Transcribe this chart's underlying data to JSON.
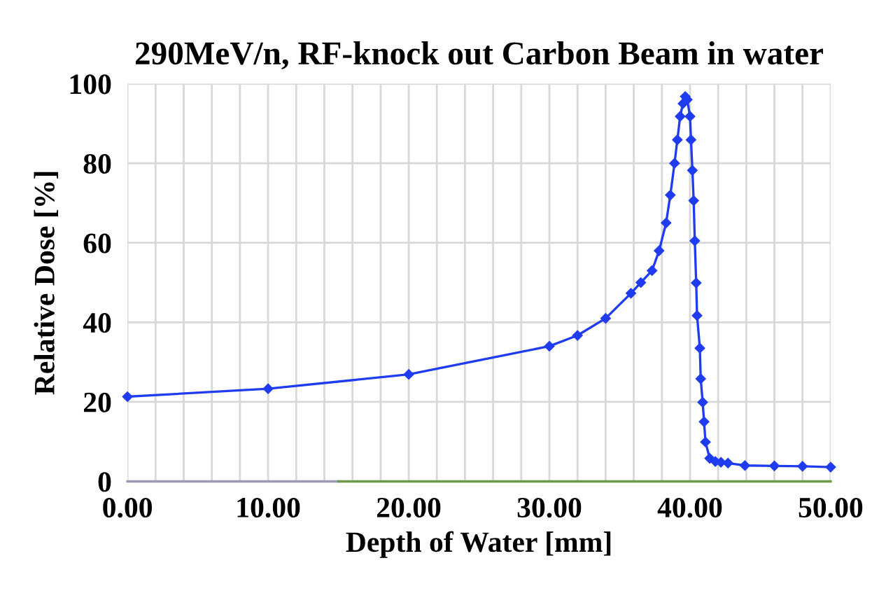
{
  "chart_data": {
    "type": "line",
    "title": "290MeV/n, RF-knock out Carbon Beam in water",
    "xlabel": "Depth of Water [mm]",
    "ylabel": "Relative Dose [%]",
    "xlim": [
      0,
      50
    ],
    "ylim": [
      0,
      100
    ],
    "xticks": [
      {
        "value": 0,
        "label": "0.00"
      },
      {
        "value": 2,
        "label": null
      },
      {
        "value": 4,
        "label": null
      },
      {
        "value": 6,
        "label": null
      },
      {
        "value": 8,
        "label": null
      },
      {
        "value": 10,
        "label": "10.00"
      },
      {
        "value": 12,
        "label": null
      },
      {
        "value": 14,
        "label": null
      },
      {
        "value": 16,
        "label": null
      },
      {
        "value": 18,
        "label": null
      },
      {
        "value": 20,
        "label": "20.00"
      },
      {
        "value": 22,
        "label": null
      },
      {
        "value": 24,
        "label": null
      },
      {
        "value": 26,
        "label": null
      },
      {
        "value": 28,
        "label": null
      },
      {
        "value": 30,
        "label": "30.00"
      },
      {
        "value": 32,
        "label": null
      },
      {
        "value": 34,
        "label": null
      },
      {
        "value": 36,
        "label": null
      },
      {
        "value": 38,
        "label": null
      },
      {
        "value": 40,
        "label": "40.00"
      },
      {
        "value": 42,
        "label": null
      },
      {
        "value": 44,
        "label": null
      },
      {
        "value": 46,
        "label": null
      },
      {
        "value": 48,
        "label": null
      },
      {
        "value": 50,
        "label": "50.00"
      }
    ],
    "yticks": [
      0,
      20,
      40,
      60,
      80,
      100
    ],
    "grid": true,
    "line_style": "solid",
    "series": [
      {
        "color": "#9a9ab4",
        "marker": "none",
        "x": [
          0,
          15
        ],
        "values": [
          0,
          0
        ]
      },
      {
        "color": "#6a9a4a",
        "marker": "none",
        "x": [
          15,
          50
        ],
        "values": [
          0,
          0
        ]
      },
      {
        "color": "#1f3cf0",
        "marker": "diamond",
        "x": [
          0,
          10,
          20,
          30,
          32,
          34,
          35.8,
          36.5,
          37.3,
          37.8,
          38.3,
          38.6,
          38.9,
          39.1,
          39.3,
          39.5,
          39.66,
          39.8,
          40.0,
          40.07,
          40.17,
          40.26,
          40.34,
          40.44,
          40.5,
          40.7,
          40.76,
          40.9,
          41.0,
          41.1,
          41.4,
          41.8,
          42.2,
          42.7,
          43.9,
          46,
          48,
          50
        ],
        "values": [
          21.3,
          23.3,
          26.9,
          34,
          36.7,
          41,
          47.3,
          50,
          53,
          58,
          65,
          72,
          80,
          85.9,
          91.8,
          95,
          96.8,
          96,
          91.8,
          85.9,
          78.2,
          70.6,
          60.5,
          49.9,
          41.7,
          33.5,
          25.8,
          19.9,
          15,
          9.9,
          5.8,
          5,
          4.8,
          4.6,
          4,
          3.9,
          3.8,
          3.6
        ]
      }
    ]
  }
}
